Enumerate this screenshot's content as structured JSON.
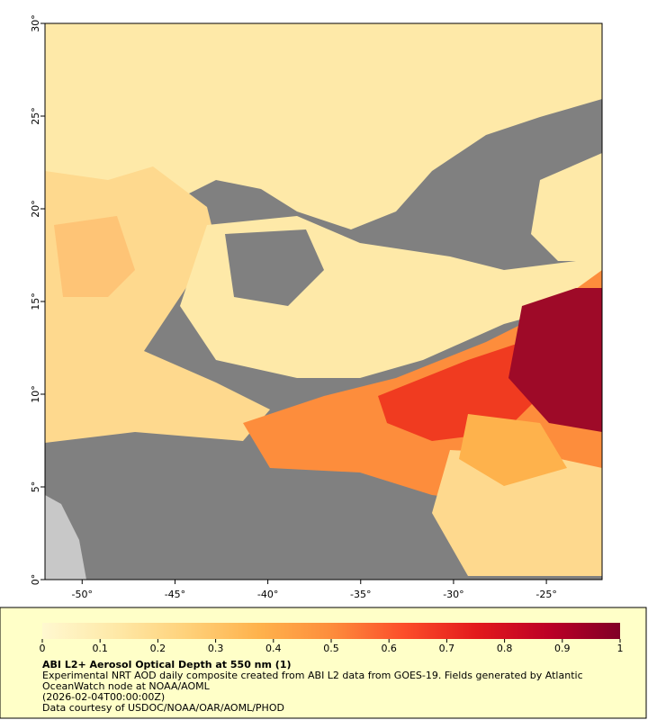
{
  "map": {
    "xlim": [
      -52,
      -22
    ],
    "ylim": [
      0,
      30
    ],
    "xticks": [
      {
        "value": -50,
        "label": "-50°"
      },
      {
        "value": -45,
        "label": "-45°"
      },
      {
        "value": -40,
        "label": "-40°"
      },
      {
        "value": -35,
        "label": "-35°"
      },
      {
        "value": -30,
        "label": "-30°"
      },
      {
        "value": -25,
        "label": "-25°"
      }
    ],
    "yticks": [
      {
        "value": 0,
        "label": "0°"
      },
      {
        "value": 5,
        "label": "5°"
      },
      {
        "value": 10,
        "label": "10°"
      },
      {
        "value": 15,
        "label": "15°"
      },
      {
        "value": 20,
        "label": "20°"
      },
      {
        "value": 25,
        "label": "25°"
      },
      {
        "value": 30,
        "label": "30°"
      }
    ]
  },
  "colorbar": {
    "lim": [
      0,
      1
    ],
    "ticks": [
      0,
      0.1,
      0.2,
      0.3,
      0.4,
      0.5,
      0.6,
      0.7,
      0.8,
      0.9,
      1
    ],
    "colors": [
      "#fff8d0",
      "#fee9a8",
      "#fed17a",
      "#feb24c",
      "#fd8d3c",
      "#fc4e2a",
      "#e31a1c",
      "#bd0026",
      "#800026"
    ]
  },
  "legend": {
    "title": "ABI L2+ Aerosol Optical Depth at 550 nm (1)",
    "lines": [
      "Experimental NRT AOD daily composite created from ABI L2 data from GOES-19. Fields generated by Atlantic",
      "OceanWatch node at NOAA/AOML",
      "(2026-02-04T00:00:00Z)",
      "Data courtesy of USDOC/NOAA/OAR/AOML/PHOD"
    ]
  }
}
